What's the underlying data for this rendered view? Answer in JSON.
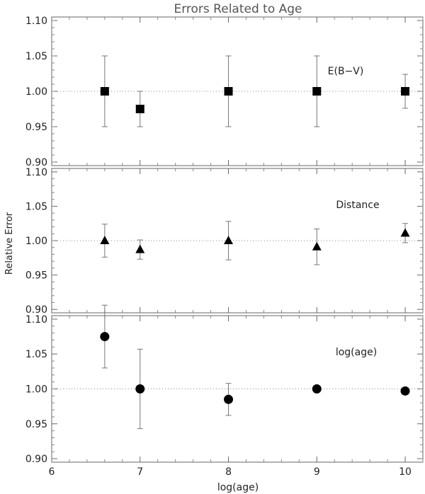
{
  "chart_data": {
    "title": "Errors Related to Age",
    "xlabel": "log(age)",
    "ylabel": "Relative Error",
    "xlim": [
      6,
      10.2
    ],
    "xticks": [
      "6",
      "7",
      "8",
      "9",
      "10"
    ],
    "yticks": [
      "0.90",
      "0.95",
      "1.00",
      "1.05",
      "1.10"
    ],
    "reference_line": 1.0,
    "panels": [
      {
        "type": "scatter",
        "label": "E(B−V)",
        "marker": "square",
        "ylim": [
          0.895,
          1.105
        ],
        "x": [
          6.6,
          7.0,
          8.0,
          9.0,
          10.0
        ],
        "y": [
          1.0,
          0.975,
          1.0,
          1.0,
          1.0
        ],
        "yerr": [
          0.05,
          0.025,
          0.05,
          0.05,
          0.024
        ]
      },
      {
        "type": "scatter",
        "label": "Distance",
        "marker": "triangle",
        "ylim": [
          0.895,
          1.105
        ],
        "x": [
          6.6,
          7.0,
          8.0,
          9.0,
          10.0
        ],
        "y": [
          1.0,
          0.987,
          1.0,
          0.991,
          1.011
        ],
        "yerr": [
          0.024,
          0.014,
          0.028,
          0.026,
          0.014
        ]
      },
      {
        "type": "scatter",
        "label": "log(age)",
        "marker": "circle",
        "ylim": [
          0.895,
          1.105
        ],
        "x": [
          6.6,
          7.0,
          8.0,
          9.0,
          10.0
        ],
        "y": [
          1.075,
          1.0,
          0.985,
          1.0,
          0.997
        ],
        "yerr": [
          0.045,
          0.057,
          0.023,
          0.0,
          0.0
        ]
      }
    ]
  }
}
